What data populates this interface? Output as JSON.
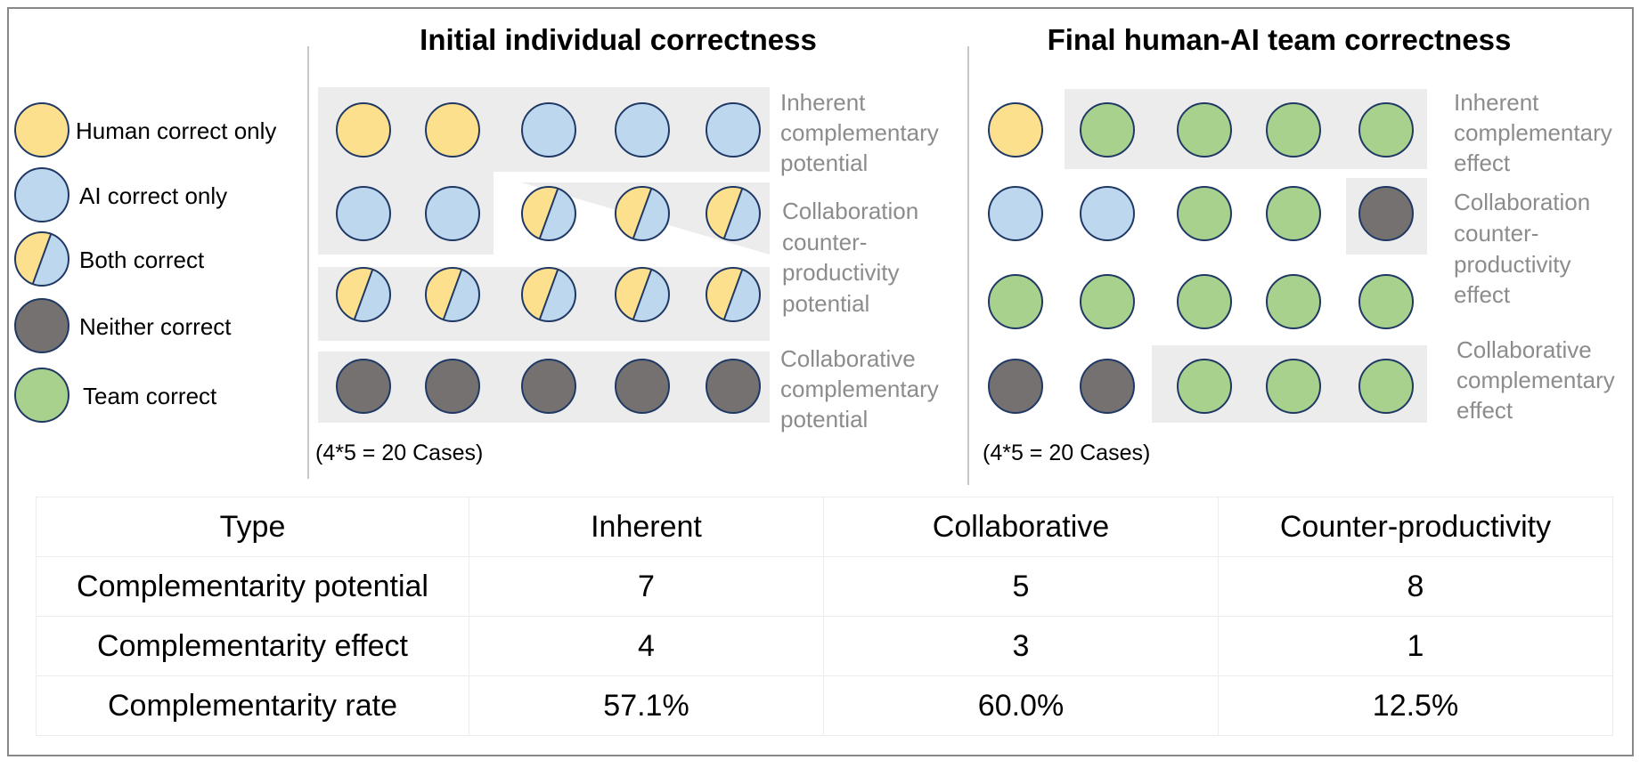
{
  "legend": [
    {
      "key": "human",
      "label": "Human correct only"
    },
    {
      "key": "ai",
      "label": "AI correct only"
    },
    {
      "key": "both",
      "label": "Both correct"
    },
    {
      "key": "neither",
      "label": "Neither correct"
    },
    {
      "key": "team",
      "label": "Team correct"
    }
  ],
  "colors": {
    "human": "#FDE08E",
    "ai": "#BDD7EE",
    "neither": "#767171",
    "team": "#A9D18E",
    "outline": "#1F3864",
    "highlight": "#ECECEC",
    "annotation": "#8C8C8C",
    "divider": "#C8C8C8"
  },
  "panels": [
    {
      "key": "initial",
      "title": "Initial individual correctness",
      "grid": [
        [
          "human",
          "human",
          "ai",
          "ai",
          "ai"
        ],
        [
          "ai",
          "ai",
          "both",
          "both",
          "both"
        ],
        [
          "both",
          "both",
          "both",
          "both",
          "both"
        ],
        [
          "neither",
          "neither",
          "neither",
          "neither",
          "neither"
        ]
      ],
      "groups": [
        {
          "name": "Inherent complementary potential",
          "lines": [
            "Inherent",
            "complementary",
            "potential"
          ]
        },
        {
          "name": "Collaboration counter-productivity potential",
          "lines": [
            "Collaboration",
            "counter-",
            "productivity",
            "potential"
          ]
        },
        {
          "name": "Collaborative complementary potential",
          "lines": [
            "Collaborative",
            "complementary",
            "potential"
          ]
        }
      ],
      "caption": "(4*5 = 20 Cases)"
    },
    {
      "key": "final",
      "title": "Final human-AI team correctness",
      "grid": [
        [
          "human",
          "team",
          "team",
          "team",
          "team"
        ],
        [
          "ai",
          "ai",
          "team",
          "team",
          "neither"
        ],
        [
          "team",
          "team",
          "team",
          "team",
          "team"
        ],
        [
          "neither",
          "neither",
          "team",
          "team",
          "team"
        ]
      ],
      "groups": [
        {
          "name": "Inherent complementary effect",
          "lines": [
            "Inherent",
            "complementary",
            "effect"
          ]
        },
        {
          "name": "Collaboration counter-productivity effect",
          "lines": [
            "Collaboration",
            "counter-",
            "productivity",
            "effect"
          ]
        },
        {
          "name": "Collaborative complementary effect",
          "lines": [
            "Collaborative",
            "complementary",
            "effect"
          ]
        }
      ],
      "caption": "(4*5 = 20 Cases)"
    }
  ],
  "table": {
    "header": [
      "Type",
      "Inherent",
      "Collaborative",
      "Counter-productivity"
    ],
    "rows": [
      [
        "Complementarity potential",
        "7",
        "5",
        "8"
      ],
      [
        "Complementarity effect",
        "4",
        "3",
        "1"
      ],
      [
        "Complementarity rate",
        "57.1%",
        "60.0%",
        "12.5%"
      ]
    ]
  }
}
